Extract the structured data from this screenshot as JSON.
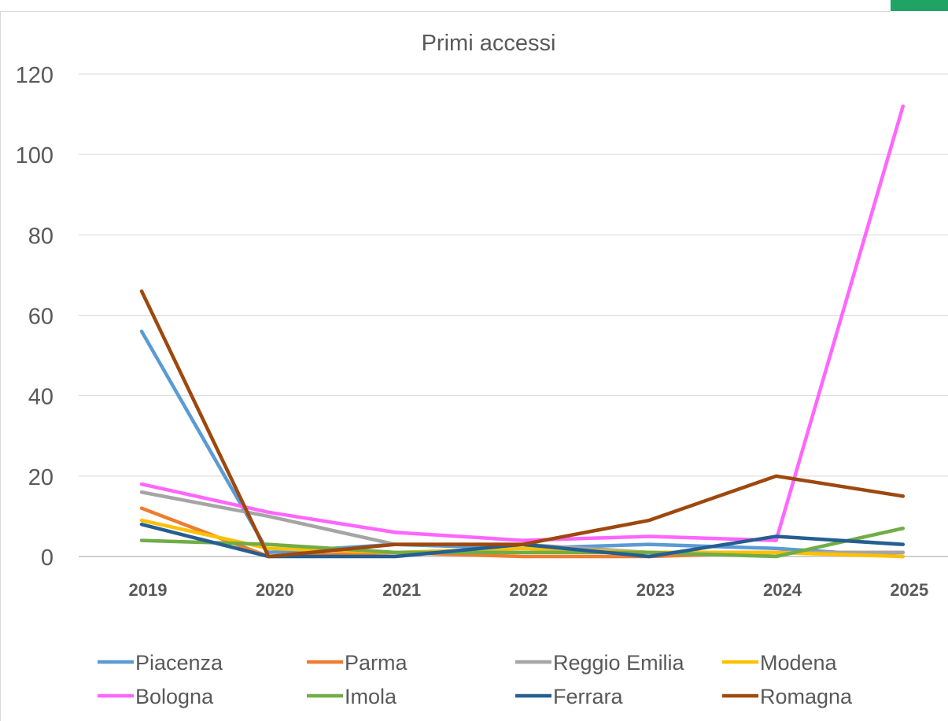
{
  "chart_data": {
    "type": "line",
    "title": "Primi accessi",
    "xlabel": "",
    "ylabel": "",
    "ylim": [
      0,
      120
    ],
    "yticks": [
      "0",
      "20",
      "40",
      "60",
      "80",
      "100",
      "120"
    ],
    "categories": [
      "2019",
      "2020",
      "2021",
      "2022",
      "2023",
      "2024",
      "2025"
    ],
    "grid": true,
    "legend_position": "bottom",
    "series": [
      {
        "name": "Piacenza",
        "color": "#5b9bd5",
        "values": [
          56,
          1,
          3,
          2,
          3,
          2,
          0
        ]
      },
      {
        "name": "Parma",
        "color": "#ed7d31",
        "values": [
          12,
          0,
          1,
          0,
          0,
          1,
          1
        ]
      },
      {
        "name": "Reggio Emilia",
        "color": "#a5a5a5",
        "values": [
          16,
          10,
          3,
          3,
          1,
          1,
          1
        ]
      },
      {
        "name": "Modena",
        "color": "#ffc000",
        "values": [
          9,
          2,
          1,
          2,
          1,
          1,
          0
        ]
      },
      {
        "name": "Bologna",
        "color": "#ff66ff",
        "values": [
          18,
          11,
          6,
          4,
          5,
          4,
          112
        ]
      },
      {
        "name": "Imola",
        "color": "#70ad47",
        "values": [
          4,
          3,
          1,
          1,
          1,
          0,
          7
        ]
      },
      {
        "name": "Ferrara",
        "color": "#255e91",
        "values": [
          8,
          0,
          0,
          3,
          0,
          5,
          3
        ]
      },
      {
        "name": "Romagna",
        "color": "#9e480e",
        "values": [
          66,
          0,
          3,
          3,
          9,
          20,
          15
        ]
      }
    ]
  }
}
